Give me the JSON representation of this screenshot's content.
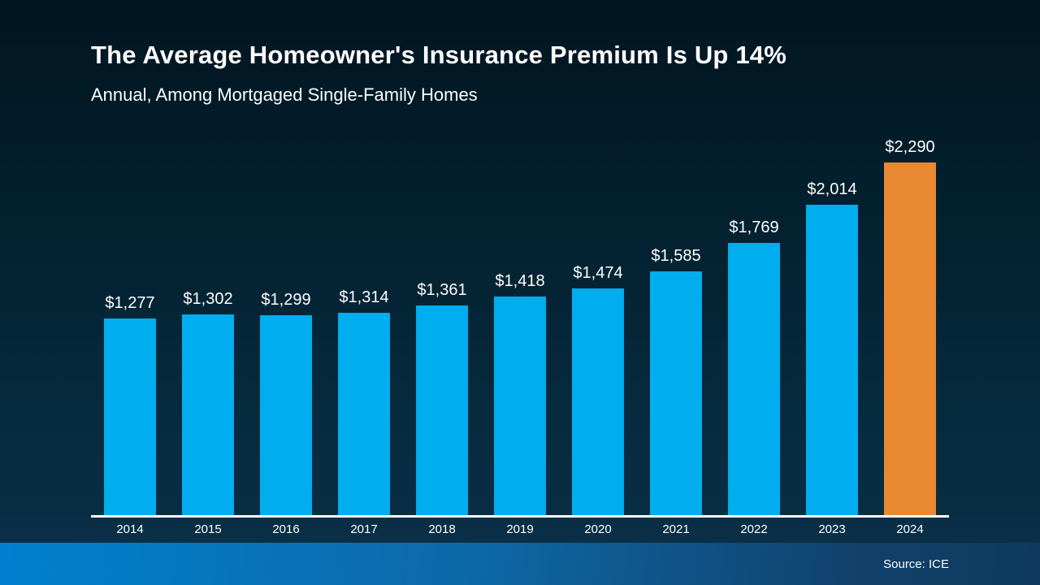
{
  "header": {
    "title": "The Average Homeowner's Insurance Premium Is Up 14%",
    "subtitle": "Annual, Among Mortgaged Single-Family Homes"
  },
  "footer": {
    "source": "Source: ICE"
  },
  "colors": {
    "background_top": "#021520",
    "background_bottom": "#0b3149",
    "bar_blue": "#00AEEF",
    "bar_orange": "#E98A33",
    "axis_line": "#FFFFFF",
    "footer_gradient_left": "#0080CF",
    "footer_gradient_right": "#0D3A5E",
    "text": "#FFFFFF"
  },
  "chart_data": {
    "type": "bar",
    "title": "The Average Homeowner's Insurance Premium Is Up 14%",
    "subtitle": "Annual, Among Mortgaged Single-Family Homes",
    "categories": [
      "2014",
      "2015",
      "2016",
      "2017",
      "2018",
      "2019",
      "2020",
      "2021",
      "2022",
      "2023",
      "2024"
    ],
    "values": [
      1277,
      1302,
      1299,
      1314,
      1361,
      1418,
      1474,
      1585,
      1769,
      2014,
      2290
    ],
    "value_labels": [
      "$1,277",
      "$1,302",
      "$1,299",
      "$1,314",
      "$1,361",
      "$1,418",
      "$1,474",
      "$1,585",
      "$1,769",
      "$2,014",
      "$2,290"
    ],
    "xlabel": "",
    "ylabel": "",
    "ylim": [
      0,
      2400
    ],
    "grid": false,
    "legend": null,
    "bar_color": "#00AEEF",
    "highlight_color": "#E98A33",
    "highlight_index": 10,
    "source": "Source: ICE"
  }
}
